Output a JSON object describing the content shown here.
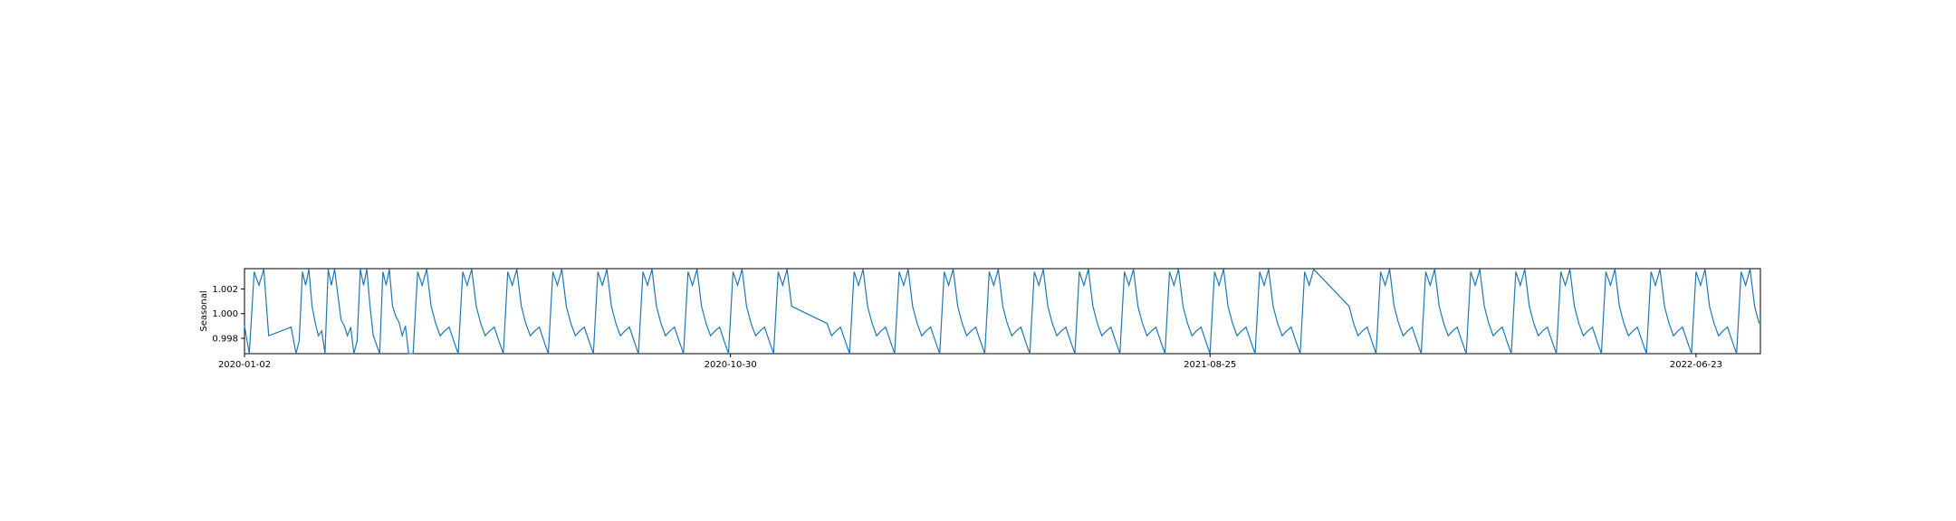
{
  "chart_data": {
    "type": "line",
    "title": "",
    "xlabel": "",
    "ylabel": "Seasonal",
    "x_tick_labels": [
      "2020-01-02",
      "2020-10-30",
      "2021-08-25",
      "2022-06-23"
    ],
    "y_tick_labels": [
      "0.998",
      "1.000",
      "1.002"
    ],
    "y_ticks": [
      0.998,
      1.0,
      1.002
    ],
    "x_ticks": [
      0,
      302,
      600,
      902
    ],
    "xlim": [
      0,
      942
    ],
    "ylim": [
      0.99675,
      1.00365
    ],
    "grid": false,
    "series": [
      {
        "color": "#1f77b4",
        "pattern": [
          0.99675,
          1.0034,
          1.0023,
          1.0036,
          1.0006,
          0.9992,
          0.9982,
          0.9986,
          0.9989,
          0.9978
        ],
        "note_values": "weekly-like repeating seasonal pattern, period 10 samples",
        "x": [
          0,
          3,
          6,
          9,
          12,
          15,
          29,
          32,
          34,
          36,
          38,
          40,
          42,
          44,
          46,
          48,
          50,
          52,
          54,
          56,
          60,
          62,
          64,
          66,
          68,
          70,
          72,
          74,
          76,
          78,
          80,
          84,
          86,
          88,
          90,
          92,
          94,
          96,
          98,
          100,
          102
        ],
        "y": [
          0.999,
          0.99675,
          1.0034,
          1.0023,
          1.0036,
          0.9982,
          0.9989,
          0.99675,
          0.9978,
          1.0034,
          1.0023,
          1.0036,
          1.0006,
          0.9992,
          0.9982,
          0.9986,
          0.99675,
          1.0036,
          1.0023,
          1.0036,
          0.9995,
          0.999,
          0.9982,
          0.9989,
          0.99675,
          0.9978,
          1.0036,
          1.0023,
          1.0036,
          1.0006,
          0.9982,
          0.99675,
          1.0034,
          1.0023,
          1.0036,
          1.0006,
          0.9998,
          0.9993,
          0.9982,
          0.999,
          0.99675
        ]
      }
    ]
  }
}
